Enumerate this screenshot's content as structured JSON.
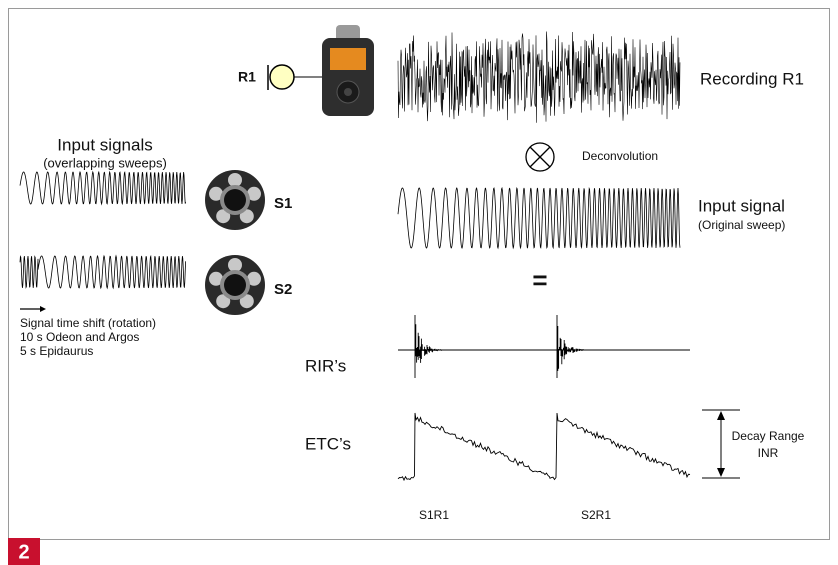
{
  "receiver": "R1",
  "recording": "Recording R1",
  "left": {
    "title": "Input signals",
    "subtitle": "(overlapping sweeps)",
    "sources": [
      "S1",
      "S2"
    ],
    "notes": [
      "Signal time shift (rotation)",
      "10 s Odeon and Argos",
      "5 s Epidaurus"
    ]
  },
  "operation": "Deconvolution",
  "input": {
    "title": "Input signal",
    "subtitle": "(Original sweep)"
  },
  "equals": "=",
  "rows": [
    "RIR’s",
    "ETC’s"
  ],
  "decay": [
    "Decay Range",
    "INR"
  ],
  "pairs": [
    "S1R1",
    "S2R1"
  ],
  "figure_number": "2"
}
